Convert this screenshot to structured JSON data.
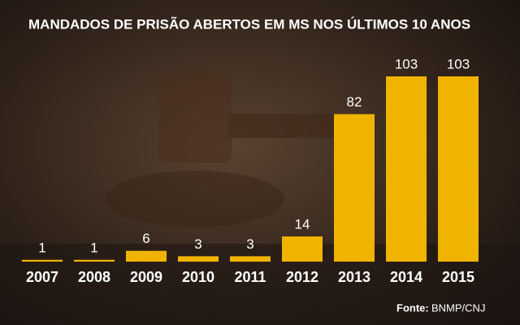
{
  "chart_data": {
    "type": "bar",
    "title": "MANDADOS DE PRISÃO ABERTOS EM MS NOS ÚLTIMOS 10 ANOS",
    "categories": [
      "2007",
      "2008",
      "2009",
      "2010",
      "2011",
      "2012",
      "2013",
      "2014",
      "2015"
    ],
    "values": [
      1,
      1,
      6,
      3,
      3,
      14,
      82,
      103,
      103
    ],
    "color": "#f0b400",
    "source_label": "Fonte:",
    "source": "BNMP/CNJ"
  }
}
